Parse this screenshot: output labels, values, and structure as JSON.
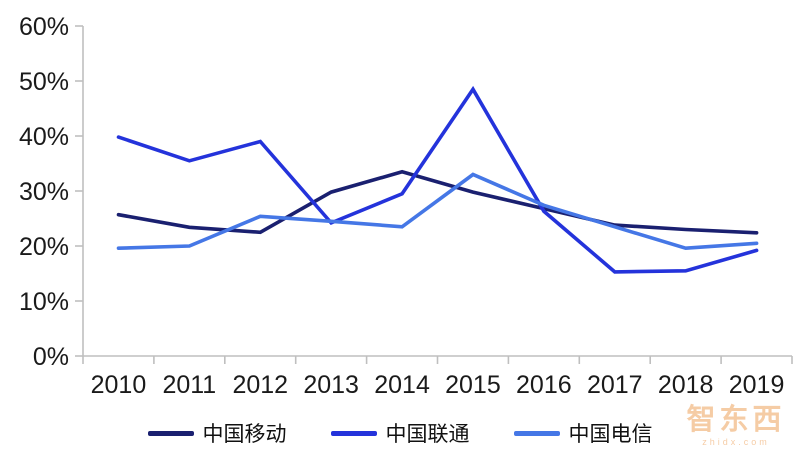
{
  "chart_data": {
    "type": "line",
    "title": "",
    "xlabel": "",
    "ylabel": "",
    "x": [
      "2010",
      "2011",
      "2012",
      "2013",
      "2014",
      "2015",
      "2016",
      "2017",
      "2018",
      "2019"
    ],
    "series": [
      {
        "name": "中国移动",
        "color": "#1A2070",
        "values": [
          25.7,
          23.4,
          22.5,
          29.8,
          33.5,
          29.8,
          26.8,
          23.8,
          23.0,
          22.4
        ]
      },
      {
        "name": "中国联通",
        "color": "#2433DB",
        "values": [
          39.8,
          35.5,
          39.0,
          24.2,
          29.5,
          48.5,
          26.3,
          15.3,
          15.5,
          19.2
        ]
      },
      {
        "name": "中国电信",
        "color": "#4577E6",
        "values": [
          19.6,
          20.0,
          25.4,
          24.5,
          23.5,
          33.0,
          27.4,
          23.5,
          19.6,
          20.5
        ]
      }
    ],
    "ylim": [
      0,
      60
    ],
    "ytick_step": 10,
    "ytick_labels": [
      "0%",
      "10%",
      "20%",
      "30%",
      "40%",
      "50%",
      "60%"
    ],
    "grid": false,
    "legend_position": "bottom",
    "axis_color": "#BFBFBF",
    "text_color": "#1A1A1A",
    "line_width": 3.6
  },
  "watermark": {
    "logo": "智东西",
    "domain": "zhidx.com",
    "color": "#ED9A4E"
  }
}
